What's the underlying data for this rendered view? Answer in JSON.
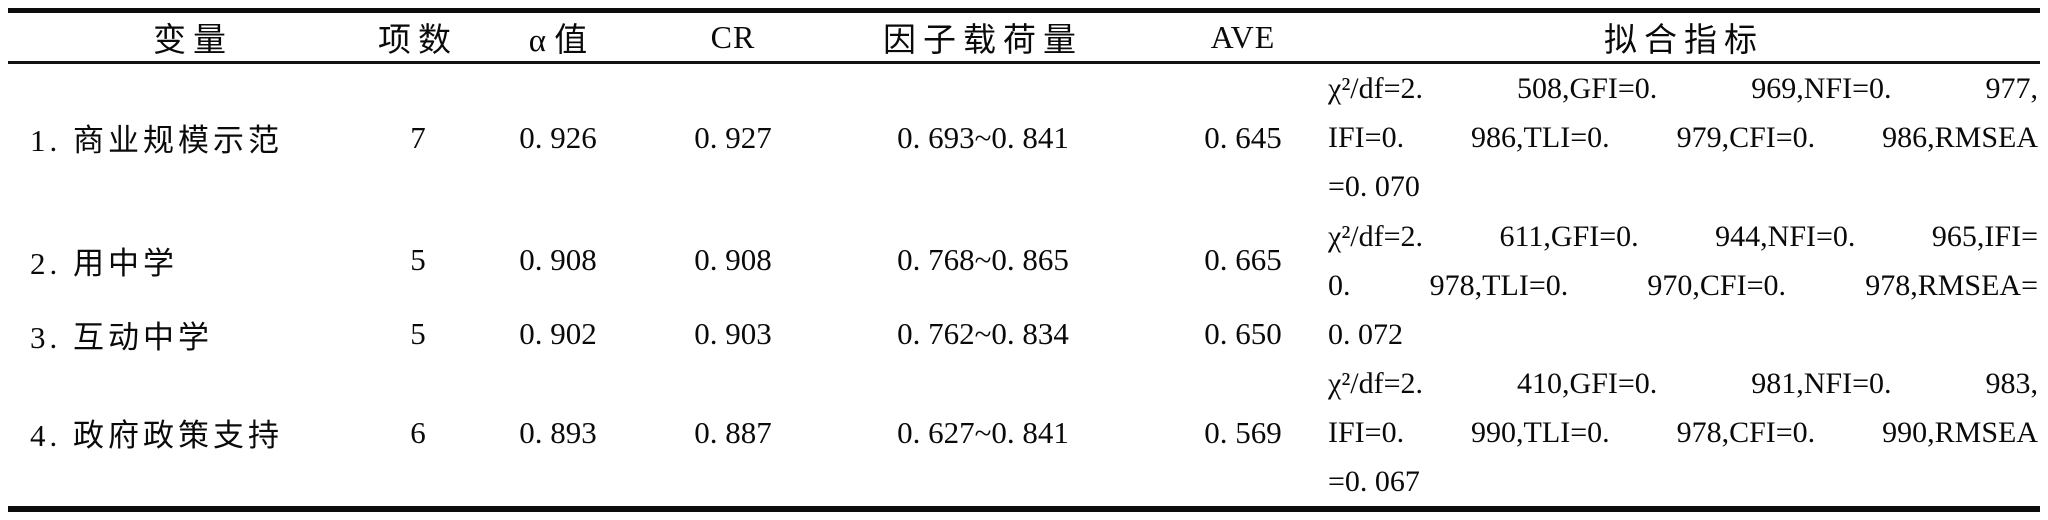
{
  "table": {
    "columns": {
      "variable": "变量",
      "items": "项数",
      "alpha": "α 值",
      "cr": "CR",
      "loading": "因子载荷量",
      "ave": "AVE",
      "fit": "拟合指标"
    },
    "rows": [
      {
        "variable": "1. 商业规模示范",
        "items": "7",
        "alpha": "0. 926",
        "cr": "0. 927",
        "loading": "0. 693~0. 841",
        "ave": "0. 645",
        "fit": [
          "χ²/df=2. 508,GFI=0. 969,NFI=0. 977,",
          "IFI=0. 986,TLI=0. 979,CFI=0. 986,RMSEA",
          "=0. 070"
        ]
      },
      {
        "variable": "2. 用中学",
        "items": "5",
        "alpha": "0. 908",
        "cr": "0. 908",
        "loading": "0. 768~0. 865",
        "ave": "0. 665",
        "fit": [
          "χ²/df=2. 611,GFI=0. 944,NFI=0. 965,IFI=",
          "0. 978,TLI=0. 970,CFI=0. 978,RMSEA=",
          "0. 072"
        ]
      },
      {
        "variable": "3. 互动中学",
        "items": "5",
        "alpha": "0. 902",
        "cr": "0. 903",
        "loading": "0. 762~0. 834",
        "ave": "0. 650"
      },
      {
        "variable": "4. 政府政策支持",
        "items": "6",
        "alpha": "0. 893",
        "cr": "0. 887",
        "loading": "0. 627~0. 841",
        "ave": "0. 569",
        "fit": [
          "χ²/df=2. 410,GFI=0. 981,NFI=0. 983,",
          "IFI=0. 990,TLI=0. 978,CFI=0. 990,RMSEA",
          "=0. 067"
        ]
      }
    ],
    "colors": {
      "text": "#0a0a0a",
      "rule": "#0c0c0c",
      "background": "#ffffff"
    }
  }
}
